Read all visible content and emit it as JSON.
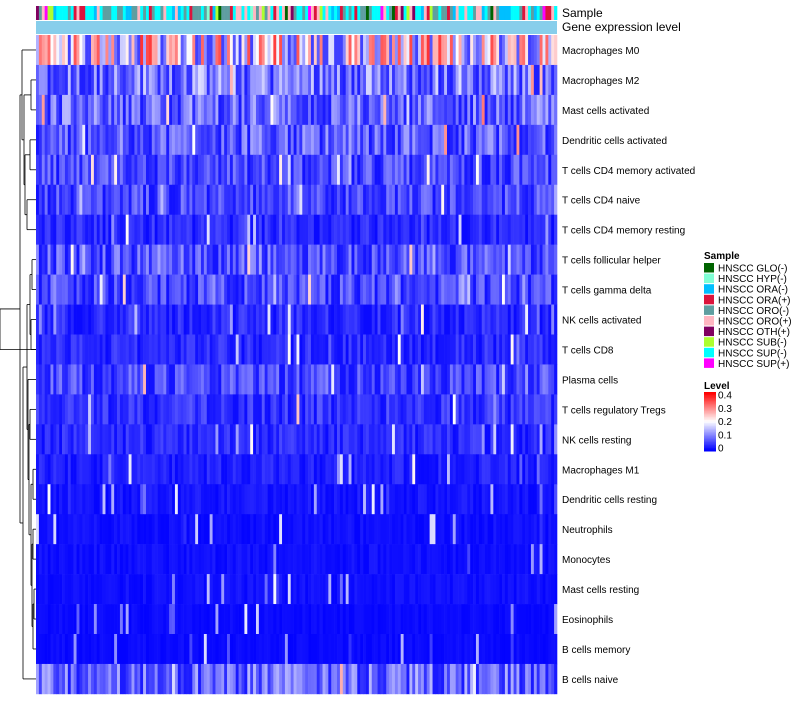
{
  "chart_data": {
    "type": "heatmap",
    "annotation_labels": [
      "Sample",
      "Gene expression level"
    ],
    "rows": [
      {
        "label": "Macrophages M0",
        "mean": 0.25
      },
      {
        "label": "Macrophages M2",
        "mean": 0.12
      },
      {
        "label": "Mast cells activated",
        "mean": 0.1
      },
      {
        "label": "Dendritic cells activated",
        "mean": 0.09
      },
      {
        "label": "T cells CD4 memory activated",
        "mean": 0.07
      },
      {
        "label": "T cells CD4 naive",
        "mean": 0.07
      },
      {
        "label": "T cells CD4 memory resting",
        "mean": 0.04
      },
      {
        "label": "T cells follicular helper",
        "mean": 0.08
      },
      {
        "label": "T cells gamma delta",
        "mean": 0.07
      },
      {
        "label": "NK cells activated",
        "mean": 0.04
      },
      {
        "label": "T cells CD8",
        "mean": 0.04
      },
      {
        "label": "Plasma cells",
        "mean": 0.07
      },
      {
        "label": "T cells regulatory  Tregs",
        "mean": 0.05
      },
      {
        "label": "NK cells resting",
        "mean": 0.04
      },
      {
        "label": "Macrophages M1",
        "mean": 0.03
      },
      {
        "label": "Dendritic cells resting",
        "mean": 0.02
      },
      {
        "label": "Neutrophils",
        "mean": 0.015
      },
      {
        "label": "Monocytes",
        "mean": 0.015
      },
      {
        "label": "Mast cells resting",
        "mean": 0.015
      },
      {
        "label": "Eosinophils",
        "mean": 0.01
      },
      {
        "label": "B cells memory",
        "mean": 0.01
      },
      {
        "label": "B cells naive",
        "mean": 0.1
      }
    ],
    "n_samples": 180,
    "sample_legend": {
      "title": "Sample",
      "entries": [
        {
          "label": "HNSCC GLO(-)",
          "color": "#006400"
        },
        {
          "label": "HNSCC HYP(-)",
          "color": "#7fffd4"
        },
        {
          "label": "HNSCC ORA(-)",
          "color": "#00bfff"
        },
        {
          "label": "HNSCC ORA(+)",
          "color": "#dc143c"
        },
        {
          "label": "HNSCC ORO(-)",
          "color": "#5f9ea0"
        },
        {
          "label": "HNSCC ORO(+)",
          "color": "#ffb6c1"
        },
        {
          "label": "HNSCC OTH(+)",
          "color": "#800060"
        },
        {
          "label": "HNSCC SUB(-)",
          "color": "#adff2f"
        },
        {
          "label": "HNSCC SUP(-)",
          "color": "#00ffff"
        },
        {
          "label": "HNSCC SUP(+)",
          "color": "#ff00ff"
        }
      ]
    },
    "level_legend": {
      "title": "Level",
      "ticks": [
        "0.4",
        "0.3",
        "0.2",
        "0.1",
        "0"
      ],
      "range": [
        0,
        0.4
      ],
      "colors": [
        "#0000ff",
        "#ffffff",
        "#ff0000"
      ]
    },
    "level_bar_color": "#87ceeb"
  }
}
